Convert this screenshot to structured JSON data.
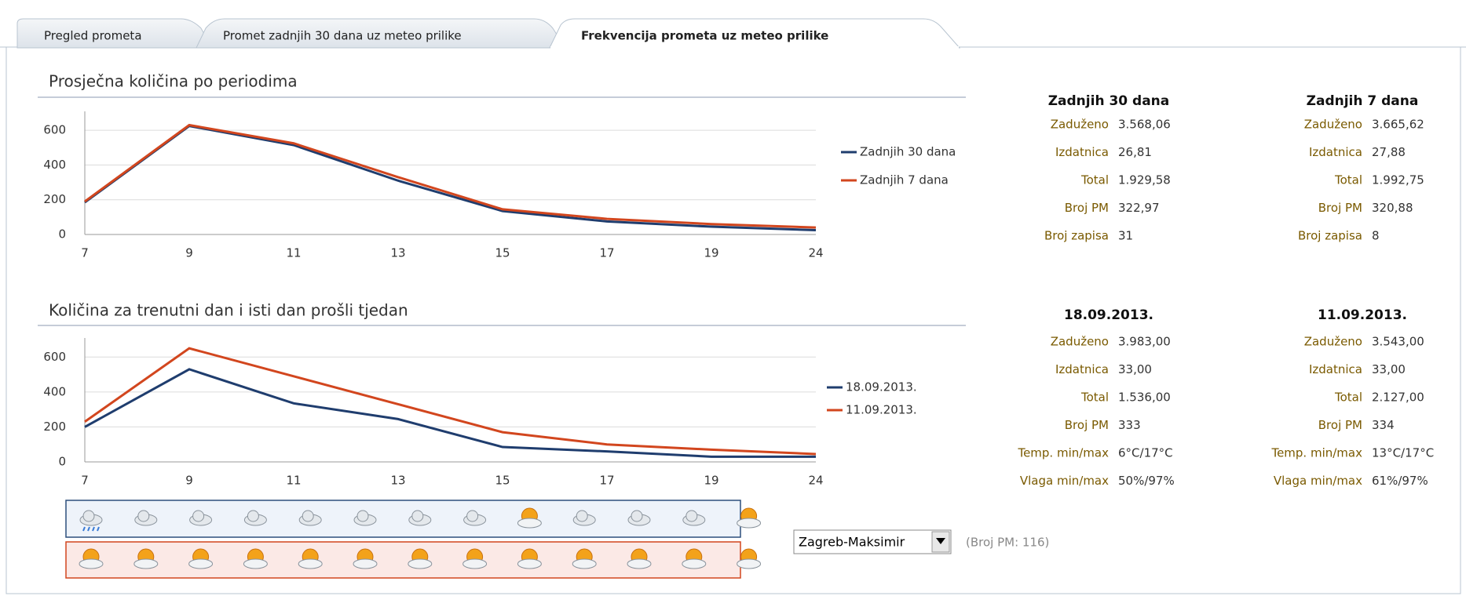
{
  "tabs": [
    "Pregled prometa",
    "Promet zadnjih 30 dana uz meteo prilike",
    "Frekvencija prometa uz meteo prilike"
  ],
  "chart_data": [
    {
      "type": "line",
      "title": "Prosječna količina po periodima",
      "categories": [
        "7",
        "9",
        "11",
        "13",
        "15",
        "17",
        "19",
        "24"
      ],
      "series": [
        {
          "name": "Zadnjih 30 dana",
          "color": "#1f3d6e",
          "values": [
            185,
            625,
            515,
            310,
            135,
            75,
            45,
            25
          ]
        },
        {
          "name": "Zadnjih 7 dana",
          "color": "#d2461e",
          "values": [
            190,
            630,
            525,
            330,
            145,
            90,
            60,
            40
          ]
        }
      ],
      "ylim": [
        0,
        700
      ],
      "yticks": [
        0,
        200,
        400,
        600
      ],
      "grid": true,
      "legend": "right"
    },
    {
      "type": "line",
      "title": "Količina za trenutni dan i isti dan prošli tjedan",
      "categories": [
        "7",
        "9",
        "11",
        "13",
        "15",
        "17",
        "19",
        "24"
      ],
      "series": [
        {
          "name": "18.09.2013.",
          "color": "#1f3d6e",
          "values": [
            200,
            530,
            335,
            245,
            85,
            60,
            30,
            30
          ]
        },
        {
          "name": "11.09.2013.",
          "color": "#d2461e",
          "values": [
            230,
            650,
            490,
            330,
            170,
            100,
            70,
            45
          ]
        }
      ],
      "ylim": [
        0,
        700
      ],
      "yticks": [
        0,
        200,
        400,
        600
      ],
      "grid": true,
      "legend": "right"
    }
  ],
  "stats": [
    {
      "title": "Zadnjih 30 dana",
      "rows": [
        {
          "label": "Zaduženo",
          "value": "3.568,06"
        },
        {
          "label": "Izdatnica",
          "value": "26,81"
        },
        {
          "label": "Total",
          "value": "1.929,58"
        },
        {
          "label": "Broj PM",
          "value": "322,97"
        },
        {
          "label": "Broj zapisa",
          "value": "31"
        }
      ]
    },
    {
      "title": "Zadnjih 7 dana",
      "rows": [
        {
          "label": "Zaduženo",
          "value": "3.665,62"
        },
        {
          "label": "Izdatnica",
          "value": "27,88"
        },
        {
          "label": "Total",
          "value": "1.992,75"
        },
        {
          "label": "Broj PM",
          "value": "320,88"
        },
        {
          "label": "Broj zapisa",
          "value": "8"
        }
      ]
    },
    {
      "title": "18.09.2013.",
      "rows": [
        {
          "label": "Zaduženo",
          "value": "3.983,00"
        },
        {
          "label": "Izdatnica",
          "value": "33,00"
        },
        {
          "label": "Total",
          "value": "1.536,00"
        },
        {
          "label": "Broj PM",
          "value": "333"
        },
        {
          "label": "Temp. min/max",
          "value": "6°C/17°C"
        },
        {
          "label": "Vlaga min/max",
          "value": "50%/97%"
        }
      ]
    },
    {
      "title": "11.09.2013.",
      "rows": [
        {
          "label": "Zaduženo",
          "value": "3.543,00"
        },
        {
          "label": "Izdatnica",
          "value": "33,00"
        },
        {
          "label": "Total",
          "value": "2.127,00"
        },
        {
          "label": "Broj PM",
          "value": "334"
        },
        {
          "label": "Temp. min/max",
          "value": "13°C/17°C"
        },
        {
          "label": "Vlaga min/max",
          "value": "61%/97%"
        }
      ]
    }
  ],
  "station": {
    "selected": "Zagreb-Maksimir",
    "note": "(Broj PM: 116)"
  }
}
